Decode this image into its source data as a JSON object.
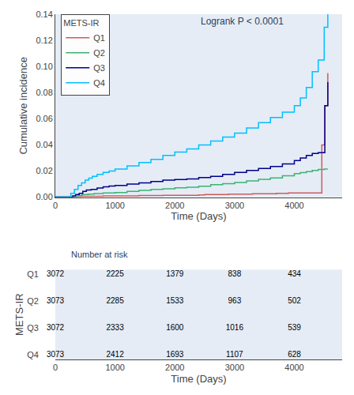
{
  "chart_data": [
    {
      "type": "step",
      "xlabel": "Time (Days)",
      "ylabel": "Cumulative incidence",
      "xlim": [
        0,
        4800
      ],
      "ylim": [
        0,
        0.14
      ],
      "xticks": [
        0,
        1000,
        2000,
        3000,
        4000
      ],
      "yticks": [
        {
          "value": 0.0,
          "label": "0.00"
        },
        0.02,
        0.04,
        0.06,
        0.08,
        {
          "value": 0.1,
          "label": "0.10"
        },
        0.12,
        0.14
      ],
      "grid": false,
      "legend": "upper left",
      "legend_title": "METS-IR",
      "annotations": [
        "Logrank P < 0.0001"
      ],
      "series": [
        {
          "name": "Q1",
          "color": "#CD5C5C",
          "x": [
            0,
            300,
            380,
            430,
            500,
            600,
            700,
            800,
            1000,
            1200,
            1400,
            1600,
            1800,
            2000,
            2200,
            2400,
            2500,
            2700,
            2900,
            3100,
            3300,
            3500,
            3700,
            3900,
            4100,
            4200,
            4300,
            4400,
            4460,
            4510,
            4560
          ],
          "values": [
            0.0,
            0.0,
            0.0003,
            0.0006,
            0.0006,
            0.0006,
            0.0006,
            0.0009,
            0.0009,
            0.0009,
            0.0012,
            0.0012,
            0.0015,
            0.0015,
            0.0015,
            0.0018,
            0.0021,
            0.0021,
            0.0024,
            0.0024,
            0.0027,
            0.0027,
            0.003,
            0.0033,
            0.0033,
            0.0033,
            0.0033,
            0.0033,
            0.04,
            0.07,
            0.095
          ]
        },
        {
          "name": "Q2",
          "color": "#3CB371",
          "x": [
            0,
            280,
            320,
            380,
            450,
            550,
            650,
            800,
            1000,
            1200,
            1400,
            1600,
            1800,
            2000,
            2200,
            2400,
            2600,
            2800,
            3000,
            3200,
            3400,
            3600,
            3800,
            4000,
            4100,
            4200,
            4300,
            4400,
            4500,
            4550
          ],
          "values": [
            0.0,
            0.0,
            0.0008,
            0.0012,
            0.002,
            0.0024,
            0.0028,
            0.0032,
            0.0036,
            0.0044,
            0.0052,
            0.006,
            0.0064,
            0.0072,
            0.0076,
            0.0084,
            0.0096,
            0.0104,
            0.0112,
            0.0124,
            0.0136,
            0.0148,
            0.0164,
            0.018,
            0.0188,
            0.0196,
            0.0204,
            0.0212,
            0.0216,
            0.022
          ]
        },
        {
          "name": "Q3",
          "color": "#00008B",
          "x": [
            0,
            240,
            290,
            340,
            400,
            460,
            520,
            600,
            700,
            800,
            900,
            1000,
            1200,
            1400,
            1600,
            1800,
            2000,
            2200,
            2400,
            2600,
            2800,
            3000,
            3200,
            3400,
            3600,
            3800,
            4000,
            4100,
            4200,
            4300,
            4400,
            4460,
            4510,
            4560
          ],
          "values": [
            0.0,
            0.0,
            0.001,
            0.002,
            0.003,
            0.0045,
            0.0055,
            0.006,
            0.007,
            0.008,
            0.0085,
            0.009,
            0.01,
            0.011,
            0.012,
            0.013,
            0.0135,
            0.014,
            0.015,
            0.016,
            0.0175,
            0.019,
            0.0205,
            0.022,
            0.0235,
            0.0255,
            0.028,
            0.03,
            0.032,
            0.0335,
            0.034,
            0.034,
            0.07,
            0.088
          ]
        },
        {
          "name": "Q4",
          "color": "#00BFFF",
          "x": [
            0,
            200,
            260,
            320,
            380,
            440,
            500,
            560,
            620,
            700,
            800,
            900,
            1000,
            1200,
            1400,
            1600,
            1800,
            2000,
            2200,
            2400,
            2600,
            2800,
            3000,
            3200,
            3400,
            3600,
            3800,
            4000,
            4100,
            4200,
            4300,
            4400,
            4500,
            4560
          ],
          "values": [
            0.0,
            0.0,
            0.003,
            0.006,
            0.009,
            0.011,
            0.013,
            0.0145,
            0.016,
            0.0175,
            0.019,
            0.02,
            0.0215,
            0.024,
            0.0265,
            0.029,
            0.032,
            0.0345,
            0.037,
            0.04,
            0.043,
            0.046,
            0.049,
            0.053,
            0.057,
            0.061,
            0.065,
            0.07,
            0.076,
            0.084,
            0.096,
            0.105,
            0.13,
            0.14
          ]
        }
      ]
    },
    {
      "type": "table",
      "title": "Number at risk",
      "ylabel": "METS-IR",
      "xlabel": "Time (Days)",
      "xlim": [
        0,
        4800
      ],
      "xticks": [
        0,
        1000,
        2000,
        3000,
        4000
      ],
      "x": [
        0,
        1000,
        2000,
        3000,
        4000
      ],
      "data_labels": true,
      "series": [
        {
          "name": "Q1",
          "values": [
            3072,
            2225,
            1379,
            838,
            434
          ]
        },
        {
          "name": "Q2",
          "values": [
            3073,
            2285,
            1533,
            963,
            502
          ]
        },
        {
          "name": "Q3",
          "values": [
            3072,
            2333,
            1600,
            1016,
            539
          ]
        },
        {
          "name": "Q4",
          "values": [
            3073,
            2412,
            1693,
            1107,
            628
          ]
        }
      ]
    }
  ]
}
